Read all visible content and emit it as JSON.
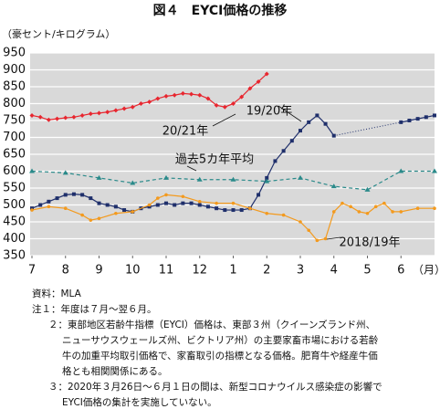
{
  "chart_data": {
    "type": "line",
    "title": "図４　EYCI価格の推移",
    "y_label": "（豪セント/キログラム）",
    "x_label": "（月）",
    "xlim": [
      0,
      12
    ],
    "xticks": [
      {
        "value": 0,
        "label": "7"
      },
      {
        "value": 1,
        "label": "8"
      },
      {
        "value": 2,
        "label": "9"
      },
      {
        "value": 3,
        "label": "10"
      },
      {
        "value": 4,
        "label": "11"
      },
      {
        "value": 5,
        "label": "12"
      },
      {
        "value": 6,
        "label": "1"
      },
      {
        "value": 7,
        "label": "2"
      },
      {
        "value": 8,
        "label": "3"
      },
      {
        "value": 9,
        "label": "4"
      },
      {
        "value": 10,
        "label": "5"
      },
      {
        "value": 11,
        "label": "6"
      }
    ],
    "ylim": [
      350,
      950
    ],
    "yticks": [
      350,
      400,
      450,
      500,
      550,
      600,
      650,
      700,
      750,
      800,
      850,
      900,
      950
    ],
    "grid": true,
    "series": [
      {
        "name": "20/21年",
        "color": "#e8262f",
        "marker": "diamond",
        "dash": "solid",
        "x": [
          0,
          0.25,
          0.5,
          0.75,
          1,
          1.25,
          1.5,
          1.75,
          2,
          2.25,
          2.5,
          2.75,
          3,
          3.25,
          3.5,
          3.75,
          4,
          4.25,
          4.5,
          4.75,
          5,
          5.25,
          5.5,
          5.75,
          6,
          6.25,
          6.5,
          6.75,
          7
        ],
        "values": [
          765,
          760,
          752,
          755,
          758,
          760,
          765,
          770,
          772,
          775,
          780,
          785,
          790,
          800,
          805,
          815,
          822,
          825,
          830,
          828,
          825,
          815,
          795,
          790,
          800,
          820,
          845,
          865,
          888
        ]
      },
      {
        "name": "19/20年",
        "color": "#1f2f6b",
        "marker": "square",
        "dash": "solid",
        "gap_line": "dotted",
        "x": [
          0,
          0.25,
          0.5,
          0.75,
          1,
          1.25,
          1.5,
          1.75,
          2,
          2.25,
          2.5,
          2.75,
          3,
          3.25,
          3.5,
          3.75,
          4,
          4.25,
          4.5,
          4.75,
          5,
          5.25,
          5.5,
          5.75,
          6,
          6.25,
          6.5,
          6.75,
          7,
          7.25,
          7.5,
          7.75,
          8,
          8.25,
          8.5,
          8.75,
          9,
          10,
          11,
          11.25,
          11.5,
          11.75,
          12
        ],
        "values": [
          490,
          500,
          510,
          520,
          530,
          532,
          530,
          520,
          505,
          500,
          495,
          485,
          480,
          490,
          495,
          500,
          505,
          500,
          505,
          505,
          500,
          495,
          490,
          485,
          485,
          485,
          490,
          530,
          580,
          630,
          660,
          690,
          720,
          745,
          765,
          740,
          705,
          null,
          745,
          750,
          755,
          760,
          765
        ]
      },
      {
        "name": "過去5カ年平均",
        "color": "#2a8a8a",
        "marker": "triangle",
        "dash": "dashed",
        "x": [
          0,
          1,
          2,
          3,
          4,
          5,
          6,
          7,
          8,
          9,
          10,
          11,
          12
        ],
        "values": [
          600,
          595,
          580,
          565,
          580,
          575,
          575,
          570,
          580,
          555,
          545,
          600,
          600
        ]
      },
      {
        "name": "2018/19年",
        "color": "#f39a1e",
        "marker": "circle",
        "dash": "solid",
        "x": [
          0,
          0.5,
          1,
          1.5,
          1.75,
          2,
          2.5,
          3,
          3.5,
          3.75,
          4,
          4.5,
          5,
          5.5,
          6,
          6.5,
          7,
          7.5,
          8,
          8.25,
          8.5,
          8.75,
          9,
          9.25,
          9.5,
          9.75,
          10,
          10.25,
          10.5,
          10.75,
          11,
          11.5,
          12
        ],
        "values": [
          485,
          495,
          490,
          470,
          455,
          460,
          475,
          480,
          500,
          520,
          530,
          525,
          510,
          505,
          505,
          490,
          475,
          470,
          450,
          425,
          395,
          400,
          480,
          505,
          495,
          480,
          475,
          495,
          505,
          480,
          480,
          490,
          490
        ]
      }
    ],
    "notes": [
      "資料：MLA",
      "注１：年度は７月～翌６月。",
      "２：東部地区若齢牛指標（EYCI）価格は、東部３州（クイーンズランド州、",
      "ニューサウスウェールズ州、ビクトリア州）の主要家畜市場における若齢",
      "牛の加重平均取引価格で、家畜取引の指標となる価格。肥育牛や経産牛価",
      "格とも相関関係にある。",
      "３：2020年３月26日～６月１日の間は、新型コロナウイルス感染症の影響で",
      "EYCI価格の集計を実施していない。"
    ]
  }
}
